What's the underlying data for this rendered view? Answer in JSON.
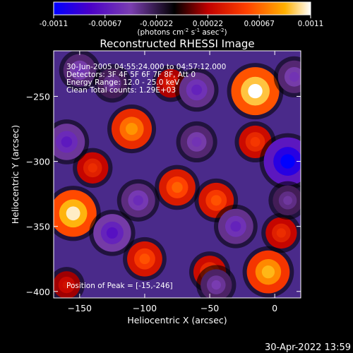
{
  "footer_timestamp": "30-Apr-2022 13:59",
  "colorbar": {
    "ticks": [
      "-0.0011",
      "-0.00067",
      "-0.00022",
      "0.00022",
      "0.00067",
      "0.0011"
    ],
    "unit_main": "(photons cm",
    "unit_exp1": "-2",
    "unit_s": " s",
    "unit_exp2": "-1",
    "unit_end": " asec",
    "unit_exp3": "-2",
    "unit_close": ")",
    "range": [
      -0.0011,
      0.0011
    ],
    "stops": [
      "#0000ff",
      "#4a00c8",
      "#8040b0",
      "#000000",
      "#c00000",
      "#ff4000",
      "#ffb000",
      "#ffffff"
    ]
  },
  "chart_data": {
    "type": "heatmap",
    "title": "Reconstructed RHESSI Image",
    "xlabel": "Heliocentric X (arcsec)",
    "ylabel": "Heliocentric Y (arcsec)",
    "xlim": [
      -170,
      20
    ],
    "ylim": [
      -405,
      -215
    ],
    "x_ticks": [
      -150,
      -100,
      -50,
      0
    ],
    "y_ticks": [
      -250,
      -300,
      -350,
      -400
    ],
    "x_tick_labels": [
      "−150",
      "−100",
      "−50",
      "0"
    ],
    "y_tick_labels": [
      "−250",
      "−300",
      "−350",
      "−400"
    ],
    "annotations": [
      "30-Jun-2005 04:55:24.000 to 04:57:12.000",
      "Detectors: 3F 4F 5F 6F 7F 8F, Att 0",
      "Energy Range: 12.0 - 25.0 keV",
      "Clean    Total counts: 1.29E+03"
    ],
    "peak_label": "Position of Peak = [-15,-246]",
    "peak": [
      -15,
      -246
    ],
    "sources": [
      {
        "x": -15,
        "y": -246,
        "value": 0.0011
      },
      {
        "x": -155,
        "y": -340,
        "value": 0.00105
      },
      {
        "x": -5,
        "y": -385,
        "value": 0.0009
      },
      {
        "x": -110,
        "y": -275,
        "value": 0.0008
      },
      {
        "x": -75,
        "y": -320,
        "value": 0.00065
      },
      {
        "x": -45,
        "y": -330,
        "value": 0.0006
      },
      {
        "x": -100,
        "y": -375,
        "value": 0.0006
      },
      {
        "x": -50,
        "y": -385,
        "value": 0.0005
      },
      {
        "x": -15,
        "y": -285,
        "value": 0.0005
      },
      {
        "x": 5,
        "y": -355,
        "value": 0.00045
      },
      {
        "x": -140,
        "y": -305,
        "value": 0.00045
      },
      {
        "x": -80,
        "y": -240,
        "value": 0.00035
      },
      {
        "x": -160,
        "y": -395,
        "value": 0.0003
      },
      {
        "x": -125,
        "y": -240,
        "value": -0.0004
      },
      {
        "x": 10,
        "y": -300,
        "value": -0.0011
      },
      {
        "x": -125,
        "y": -355,
        "value": -0.0007
      },
      {
        "x": -160,
        "y": -285,
        "value": -0.00065
      },
      {
        "x": -60,
        "y": -245,
        "value": -0.0006
      },
      {
        "x": -30,
        "y": -350,
        "value": -0.0006
      },
      {
        "x": -150,
        "y": -230,
        "value": -0.0005
      },
      {
        "x": 15,
        "y": -235,
        "value": -0.0005
      },
      {
        "x": -105,
        "y": -330,
        "value": -0.00055
      },
      {
        "x": -60,
        "y": -285,
        "value": -0.0005
      },
      {
        "x": -45,
        "y": -395,
        "value": -0.00045
      },
      {
        "x": 10,
        "y": -330,
        "value": -0.0004
      }
    ]
  }
}
